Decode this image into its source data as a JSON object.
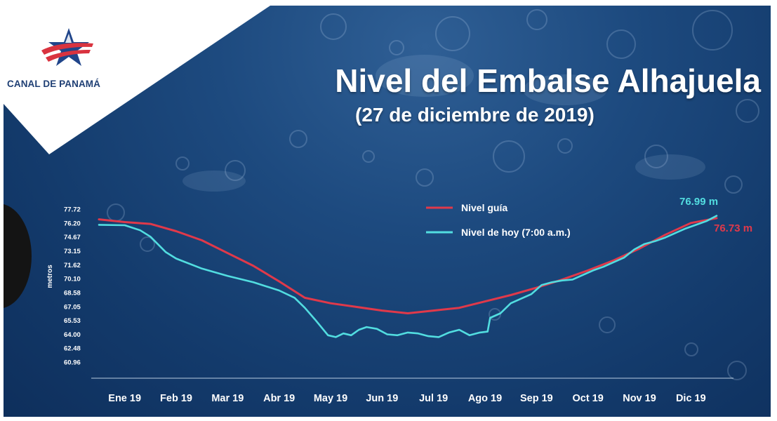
{
  "brand": {
    "name": "CANAL DE PANAMÁ"
  },
  "colors": {
    "background": "#1a467a",
    "guide_line": "#e0394a",
    "today_line": "#52dde0",
    "brand_text": "#1f3f74",
    "brand_red": "#d9333f",
    "brand_blue": "#20458a"
  },
  "chart_data": {
    "type": "line",
    "title": "Nivel del Embalse Alhajuela",
    "subtitle": "(27 de diciembre de 2019)",
    "ylabel": "metros",
    "xlabel": "",
    "x_tick_labels": [
      "Ene 19",
      "Feb 19",
      "Mar 19",
      "Abr 19",
      "May 19",
      "Jun 19",
      "Jul 19",
      "Ago 19",
      "Sep 19",
      "Oct 19",
      "Nov 19",
      "Dic 19"
    ],
    "y_ticks": [
      77.72,
      76.2,
      74.67,
      73.15,
      71.62,
      70.1,
      68.58,
      67.05,
      65.53,
      64.0,
      62.48,
      60.96
    ],
    "y_tick_labels": [
      "77.72",
      "76.20",
      "74.67",
      "73.15",
      "71.62",
      "70.10",
      "68.58",
      "67.05",
      "65.53",
      "64.00",
      "62.48",
      "60.96"
    ],
    "ylim": [
      60.96,
      77.72
    ],
    "grid": false,
    "legend_position": "top-center",
    "series": [
      {
        "name": "Nivel guía",
        "color": "#e0394a",
        "end_label": "76.73 m",
        "points": [
          [
            0.0,
            76.6
          ],
          [
            0.5,
            76.3
          ],
          [
            1.0,
            76.1
          ],
          [
            1.5,
            75.3
          ],
          [
            2.0,
            74.3
          ],
          [
            2.5,
            72.9
          ],
          [
            3.0,
            71.5
          ],
          [
            3.5,
            69.8
          ],
          [
            4.0,
            68.0
          ],
          [
            4.5,
            67.4
          ],
          [
            5.0,
            67.0
          ],
          [
            5.5,
            66.6
          ],
          [
            6.0,
            66.3
          ],
          [
            6.5,
            66.6
          ],
          [
            7.0,
            66.9
          ],
          [
            7.5,
            67.6
          ],
          [
            8.0,
            68.3
          ],
          [
            8.5,
            69.1
          ],
          [
            9.0,
            70.0
          ],
          [
            9.5,
            71.0
          ],
          [
            10.0,
            72.1
          ],
          [
            10.5,
            73.4
          ],
          [
            11.0,
            74.9
          ],
          [
            11.5,
            76.2
          ],
          [
            12.0,
            76.73
          ]
        ]
      },
      {
        "name": "Nivel de hoy (7:00 a.m.)",
        "color": "#52dde0",
        "end_label": "76.99 m",
        "points": [
          [
            0.0,
            76.0
          ],
          [
            0.5,
            75.95
          ],
          [
            0.8,
            75.4
          ],
          [
            1.0,
            74.7
          ],
          [
            1.3,
            73.0
          ],
          [
            1.5,
            72.3
          ],
          [
            2.0,
            71.2
          ],
          [
            2.5,
            70.4
          ],
          [
            3.0,
            69.7
          ],
          [
            3.5,
            68.8
          ],
          [
            3.8,
            68.0
          ],
          [
            4.0,
            66.9
          ],
          [
            4.2,
            65.6
          ],
          [
            4.45,
            63.9
          ],
          [
            4.6,
            63.7
          ],
          [
            4.75,
            64.1
          ],
          [
            4.9,
            63.9
          ],
          [
            5.05,
            64.5
          ],
          [
            5.2,
            64.8
          ],
          [
            5.4,
            64.6
          ],
          [
            5.6,
            64.0
          ],
          [
            5.8,
            63.9
          ],
          [
            6.0,
            64.2
          ],
          [
            6.2,
            64.1
          ],
          [
            6.4,
            63.8
          ],
          [
            6.6,
            63.7
          ],
          [
            6.8,
            64.2
          ],
          [
            7.0,
            64.5
          ],
          [
            7.2,
            63.9
          ],
          [
            7.4,
            64.2
          ],
          [
            7.55,
            64.3
          ],
          [
            7.6,
            65.8
          ],
          [
            7.8,
            66.3
          ],
          [
            8.0,
            67.4
          ],
          [
            8.2,
            67.9
          ],
          [
            8.4,
            68.4
          ],
          [
            8.6,
            69.4
          ],
          [
            8.8,
            69.7
          ],
          [
            9.0,
            69.9
          ],
          [
            9.2,
            70.0
          ],
          [
            9.4,
            70.5
          ],
          [
            9.6,
            71.0
          ],
          [
            9.8,
            71.4
          ],
          [
            10.0,
            71.9
          ],
          [
            10.2,
            72.4
          ],
          [
            10.4,
            73.3
          ],
          [
            10.6,
            73.9
          ],
          [
            10.8,
            74.2
          ],
          [
            11.0,
            74.6
          ],
          [
            11.2,
            75.1
          ],
          [
            11.4,
            75.6
          ],
          [
            11.6,
            76.0
          ],
          [
            11.8,
            76.4
          ],
          [
            12.0,
            76.99
          ]
        ]
      }
    ]
  }
}
